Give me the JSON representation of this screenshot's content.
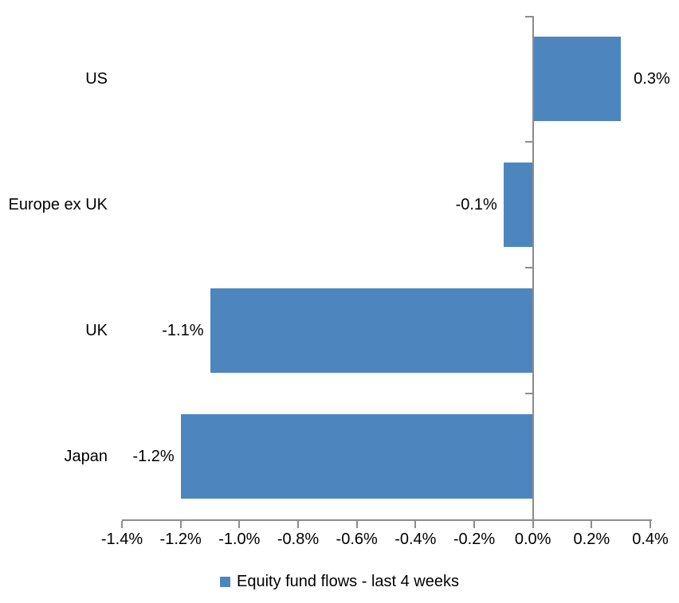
{
  "chart_data": {
    "type": "bar",
    "orientation": "horizontal",
    "title": "",
    "categories": [
      "US",
      "Europe ex UK",
      "UK",
      "Japan"
    ],
    "values": [
      0.3,
      -0.1,
      -1.1,
      -1.2
    ],
    "data_labels": [
      "0.3%",
      "-0.1%",
      "-1.1%",
      "-1.2%"
    ],
    "series": [
      {
        "name": "Equity fund flows - last 4 weeks",
        "values": [
          0.3,
          -0.1,
          -1.1,
          -1.2
        ]
      }
    ],
    "x_axis": {
      "min": -1.4,
      "max": 0.4,
      "step": 0.2,
      "tick_labels": [
        "-1.4%",
        "-1.2%",
        "-1.0%",
        "-0.8%",
        "-0.6%",
        "-0.4%",
        "-0.2%",
        "0.0%",
        "0.2%",
        "0.4%"
      ]
    },
    "grid": false,
    "legend_position": "bottom",
    "colors": {
      "bar": "#4D86BE",
      "axis": "#8C8C8C",
      "text": "#000000"
    }
  },
  "legend": {
    "label": "Equity fund flows - last 4 weeks"
  }
}
